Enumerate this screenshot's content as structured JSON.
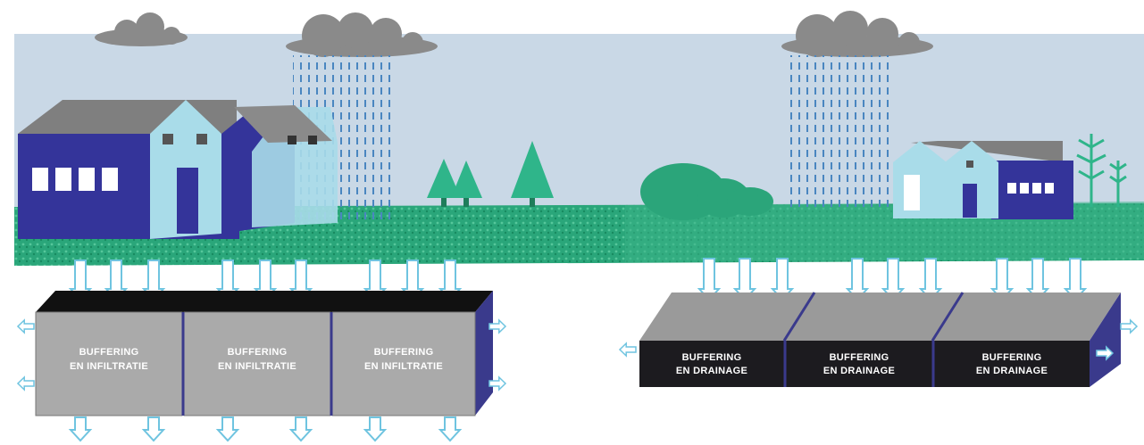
{
  "colors": {
    "sky": "#c9d8e6",
    "grass_dark": "#1f9a6e",
    "grass_light": "#3dba8c",
    "building_dark": "#34349a",
    "building_light": "#a9dce9",
    "roof": "#7f7f7f",
    "cloud": "#8a8a8a",
    "rain": "#4a86c0",
    "arrow": "#a9dcec",
    "infiltration_box": "#aaaaaa",
    "drainage_box": "#1c1b1f",
    "box_side": "#3a3a8c"
  },
  "icons": [
    "cloud-icon",
    "rain-icon",
    "tree-icon",
    "bush-icon",
    "down-arrow-icon",
    "side-arrow-icon"
  ],
  "infiltration": {
    "line1": "BUFFERING",
    "line2": "EN INFILTRATIE",
    "units": 3
  },
  "drainage": {
    "line1": "BUFFERING",
    "line2": "EN DRAINAGE",
    "units": 3
  }
}
